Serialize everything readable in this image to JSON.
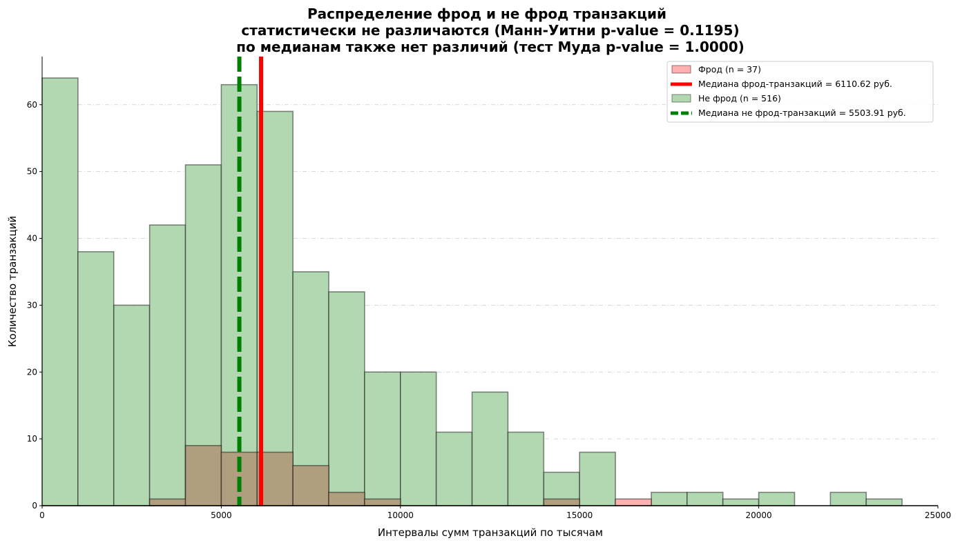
{
  "chart_data": {
    "type": "bar",
    "title_lines": [
      "Распределение фрод и не фрод транзакций",
      "статистически не различаются (Манн-Уитни p-value = 0.1195)",
      "по медианам также нет различий (тест Муда p-value = 1.0000)"
    ],
    "xlabel": "Интервалы сумм транзакций по тысячам",
    "ylabel": "Количество транзакций",
    "xlim": [
      0,
      25000
    ],
    "ylim": [
      0,
      67.2
    ],
    "xticks": [
      0,
      5000,
      10000,
      15000,
      20000,
      25000
    ],
    "xtick_labels": [
      "0",
      "5000",
      "10000",
      "15000",
      "20000",
      "25000"
    ],
    "yticks": [
      0,
      10,
      20,
      30,
      40,
      50,
      60
    ],
    "ytick_labels": [
      "0",
      "10",
      "20",
      "30",
      "40",
      "50",
      "60"
    ],
    "grid": "y dashed",
    "bin_edges": [
      0,
      1000,
      2000,
      3000,
      4000,
      5000,
      6000,
      7000,
      8000,
      9000,
      10000,
      11000,
      12000,
      13000,
      14000,
      15000,
      16000,
      17000,
      18000,
      19000,
      20000,
      21000,
      22000,
      23000,
      24000
    ],
    "series": [
      {
        "name": "Фрод (n = 37)",
        "color": "#ffb1b1",
        "values": [
          0,
          0,
          0,
          1,
          9,
          8,
          8,
          6,
          2,
          1,
          0,
          0,
          0,
          0,
          1,
          0,
          1,
          0,
          0,
          0,
          0,
          0,
          0,
          0
        ]
      },
      {
        "name": "Не фрод (n = 516)",
        "color": "#b2d8b2",
        "values": [
          64,
          38,
          30,
          42,
          51,
          63,
          59,
          35,
          32,
          20,
          20,
          11,
          17,
          11,
          5,
          8,
          0,
          2,
          2,
          1,
          2,
          0,
          2,
          1
        ]
      }
    ],
    "medians": [
      {
        "name": "Медиана фрод-транзакций = 6110.62 руб.",
        "value": 6110.62,
        "color": "#ff0000",
        "style": "solid"
      },
      {
        "name": "Медиана не фрод-транзакций = 5503.91 руб.",
        "value": 5503.91,
        "color": "#008000",
        "style": "dashed"
      }
    ],
    "legend_position": "top-right",
    "legend_order": [
      "Фрод (n = 37)",
      "Медиана фрод-транзакций = 6110.62 руб.",
      "Не фрод (n = 516)",
      "Медиана не фрод-транзакций = 5503.91 руб."
    ]
  }
}
